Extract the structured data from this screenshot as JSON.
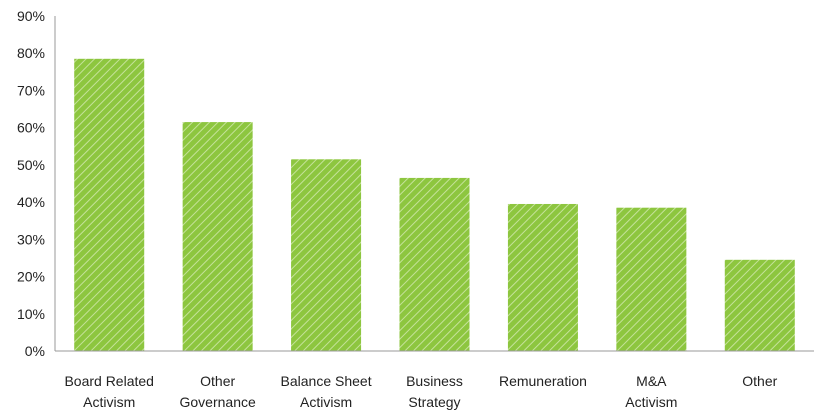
{
  "chart_data": {
    "type": "bar",
    "title": "",
    "xlabel": "",
    "ylabel": "",
    "categories": [
      [
        "Board Related",
        "Activism"
      ],
      [
        "Other",
        "Governance"
      ],
      [
        "Balance Sheet",
        "Activism"
      ],
      [
        "Business",
        "Strategy"
      ],
      [
        "Remuneration"
      ],
      [
        "M&A",
        "Activism"
      ],
      [
        "Other"
      ]
    ],
    "values": [
      78.5,
      61.5,
      51.5,
      46.5,
      39.5,
      38.5,
      24.5
    ],
    "ylim": [
      0,
      90
    ],
    "y_ticks": [
      0,
      10,
      20,
      30,
      40,
      50,
      60,
      70,
      80,
      90
    ],
    "y_tick_labels": [
      "0%",
      "10%",
      "20%",
      "30%",
      "40%",
      "50%",
      "60%",
      "70%",
      "80%",
      "90%"
    ],
    "grid": false,
    "legend": "none",
    "colors": {
      "bar_fill": "#8dc63f",
      "bar_hatch": "#c5e29a",
      "axis": "#999999",
      "text": "#222222"
    }
  }
}
